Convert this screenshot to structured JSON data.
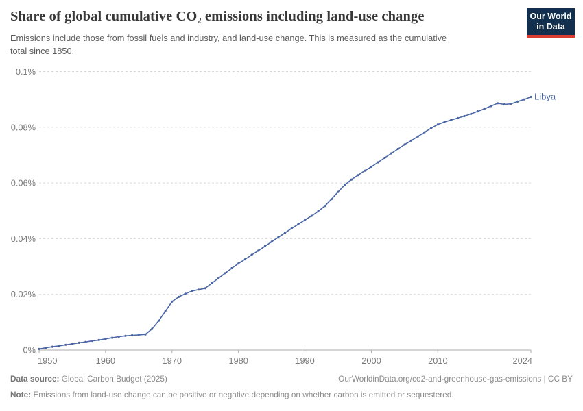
{
  "header": {
    "title": "Share of global cumulative CO₂ emissions including land-use change",
    "subtitle": "Emissions include those from fossil fuels and industry, and land-use change. This is measured as the cumulative total since 1850."
  },
  "logo": {
    "line1": "Our World",
    "line2": "in Data"
  },
  "footer": {
    "source_label": "Data source:",
    "source_value": "Global Carbon Budget (2025)",
    "link": "OurWorldinData.org/co2-and-greenhouse-gas-emissions | CC BY",
    "note_label": "Note:",
    "note_value": "Emissions from land-use change can be positive or negative depending on whether carbon is emitted or sequestered."
  },
  "chart_data": {
    "type": "line",
    "title": "Share of global cumulative CO₂ emissions including land-use change",
    "xlabel": "",
    "ylabel": "",
    "xlim": [
      1950,
      2024
    ],
    "ylim": [
      0,
      0.1
    ],
    "grid": "horizontal-dashed",
    "legend_position": "end-of-line-label",
    "x_ticks": [
      {
        "value": 1950,
        "label": "1950"
      },
      {
        "value": 1960,
        "label": "1960"
      },
      {
        "value": 1970,
        "label": "1970"
      },
      {
        "value": 1980,
        "label": "1980"
      },
      {
        "value": 1990,
        "label": "1990"
      },
      {
        "value": 2000,
        "label": "2000"
      },
      {
        "value": 2010,
        "label": "2010"
      },
      {
        "value": 2024,
        "label": "2024"
      }
    ],
    "y_ticks": [
      {
        "value": 0,
        "label": "0%"
      },
      {
        "value": 0.02,
        "label": "0.02%"
      },
      {
        "value": 0.04,
        "label": "0.04%"
      },
      {
        "value": 0.06,
        "label": "0.06%"
      },
      {
        "value": 0.08,
        "label": "0.08%"
      },
      {
        "value": 0.1,
        "label": "0.1%"
      }
    ],
    "y_unit": "%",
    "series": [
      {
        "name": "Libya",
        "color": "#4a66a4",
        "x": [
          1950,
          1951,
          1952,
          1953,
          1954,
          1955,
          1956,
          1957,
          1958,
          1959,
          1960,
          1961,
          1962,
          1963,
          1964,
          1965,
          1966,
          1967,
          1968,
          1969,
          1970,
          1971,
          1972,
          1973,
          1974,
          1975,
          1976,
          1977,
          1978,
          1979,
          1980,
          1981,
          1982,
          1983,
          1984,
          1985,
          1986,
          1987,
          1988,
          1989,
          1990,
          1991,
          1992,
          1993,
          1994,
          1995,
          1996,
          1997,
          1998,
          1999,
          2000,
          2001,
          2002,
          2003,
          2004,
          2005,
          2006,
          2007,
          2008,
          2009,
          2010,
          2011,
          2012,
          2013,
          2014,
          2015,
          2016,
          2017,
          2018,
          2019,
          2020,
          2021,
          2022,
          2023,
          2024
        ],
        "values": [
          0.0004,
          0.0008,
          0.0012,
          0.0015,
          0.0019,
          0.0022,
          0.0026,
          0.0029,
          0.0033,
          0.0036,
          0.004,
          0.0044,
          0.0048,
          0.0051,
          0.0053,
          0.0054,
          0.0056,
          0.0076,
          0.0105,
          0.0139,
          0.0174,
          0.0191,
          0.0202,
          0.0212,
          0.0217,
          0.0222,
          0.024,
          0.0258,
          0.0276,
          0.0294,
          0.0311,
          0.0326,
          0.0342,
          0.0357,
          0.0373,
          0.0389,
          0.0405,
          0.0421,
          0.0437,
          0.0452,
          0.0467,
          0.0482,
          0.0498,
          0.0517,
          0.0542,
          0.0568,
          0.0593,
          0.0612,
          0.0628,
          0.0644,
          0.0658,
          0.0674,
          0.069,
          0.0706,
          0.0722,
          0.0738,
          0.0752,
          0.0767,
          0.0782,
          0.0797,
          0.081,
          0.0819,
          0.0826,
          0.0833,
          0.084,
          0.0848,
          0.0857,
          0.0866,
          0.0876,
          0.0886,
          0.0882,
          0.0884,
          0.0892,
          0.09,
          0.0909
        ]
      }
    ]
  }
}
